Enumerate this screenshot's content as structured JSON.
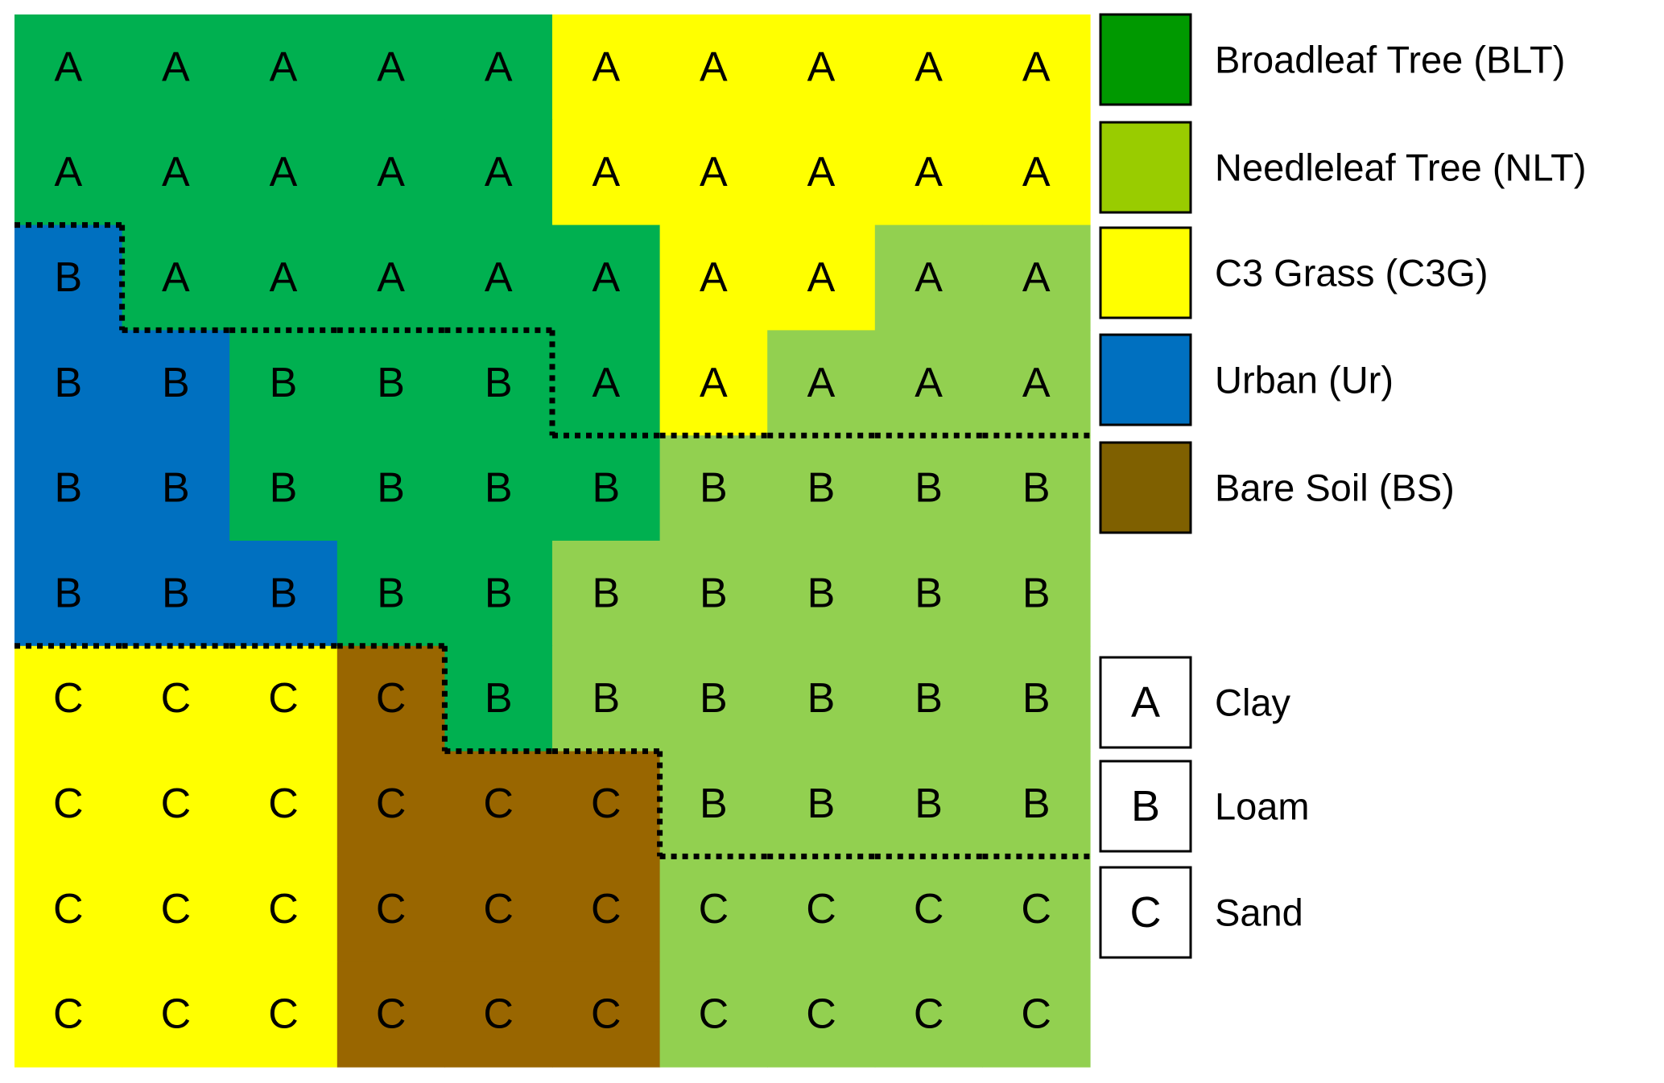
{
  "grid": {
    "rows": [
      {
        "letters": [
          "A",
          "A",
          "A",
          "A",
          "A",
          "A",
          "A",
          "A",
          "A",
          "A"
        ],
        "cover": [
          "BLT",
          "BLT",
          "BLT",
          "BLT",
          "BLT",
          "C3G",
          "C3G",
          "C3G",
          "C3G",
          "C3G"
        ]
      },
      {
        "letters": [
          "A",
          "A",
          "A",
          "A",
          "A",
          "A",
          "A",
          "A",
          "A",
          "A"
        ],
        "cover": [
          "BLT",
          "BLT",
          "BLT",
          "BLT",
          "BLT",
          "C3G",
          "C3G",
          "C3G",
          "C3G",
          "C3G"
        ]
      },
      {
        "letters": [
          "B",
          "A",
          "A",
          "A",
          "A",
          "A",
          "A",
          "A",
          "A",
          "A"
        ],
        "cover": [
          "Ur",
          "BLT",
          "BLT",
          "BLT",
          "BLT",
          "BLT",
          "C3G",
          "C3G",
          "NLT",
          "NLT"
        ]
      },
      {
        "letters": [
          "B",
          "B",
          "B",
          "B",
          "B",
          "A",
          "A",
          "A",
          "A",
          "A"
        ],
        "cover": [
          "Ur",
          "Ur",
          "BLT",
          "BLT",
          "BLT",
          "BLT",
          "C3G",
          "NLT",
          "NLT",
          "NLT"
        ]
      },
      {
        "letters": [
          "B",
          "B",
          "B",
          "B",
          "B",
          "B",
          "B",
          "B",
          "B",
          "B"
        ],
        "cover": [
          "Ur",
          "Ur",
          "BLT",
          "BLT",
          "BLT",
          "BLT",
          "NLT",
          "NLT",
          "NLT",
          "NLT"
        ]
      },
      {
        "letters": [
          "B",
          "B",
          "B",
          "B",
          "B",
          "B",
          "B",
          "B",
          "B",
          "B"
        ],
        "cover": [
          "Ur",
          "Ur",
          "Ur",
          "BLT",
          "BLT",
          "NLT",
          "NLT",
          "NLT",
          "NLT",
          "NLT"
        ]
      },
      {
        "letters": [
          "C",
          "C",
          "C",
          "C",
          "B",
          "B",
          "B",
          "B",
          "B",
          "B"
        ],
        "cover": [
          "C3G",
          "C3G",
          "C3G",
          "BS",
          "BLT",
          "NLT",
          "NLT",
          "NLT",
          "NLT",
          "NLT"
        ]
      },
      {
        "letters": [
          "C",
          "C",
          "C",
          "C",
          "C",
          "C",
          "B",
          "B",
          "B",
          "B"
        ],
        "cover": [
          "C3G",
          "C3G",
          "C3G",
          "BS",
          "BS",
          "BS",
          "NLT",
          "NLT",
          "NLT",
          "NLT"
        ]
      },
      {
        "letters": [
          "C",
          "C",
          "C",
          "C",
          "C",
          "C",
          "C",
          "C",
          "C",
          "C"
        ],
        "cover": [
          "C3G",
          "C3G",
          "C3G",
          "BS",
          "BS",
          "BS",
          "NLT",
          "NLT",
          "NLT",
          "NLT"
        ]
      },
      {
        "letters": [
          "C",
          "C",
          "C",
          "C",
          "C",
          "C",
          "C",
          "C",
          "C",
          "C"
        ],
        "cover": [
          "C3G",
          "C3G",
          "C3G",
          "BS",
          "BS",
          "BS",
          "NLT",
          "NLT",
          "NLT",
          "NLT"
        ]
      }
    ]
  },
  "cover_legend": [
    {
      "code": "BLT",
      "label": "Broadleaf Tree (BLT)",
      "color": "#009900",
      "fill": "#00b050"
    },
    {
      "code": "NLT",
      "label": "Needleleaf Tree (NLT)",
      "color": "#99cc00",
      "fill": "#92d050"
    },
    {
      "code": "C3G",
      "label": "C3 Grass (C3G)",
      "color": "#ffff00",
      "fill": "#ffff00"
    },
    {
      "code": "Ur",
      "label": "Urban (Ur)",
      "color": "#0070c0",
      "fill": "#0070c0"
    },
    {
      "code": "BS",
      "label": "Bare Soil (BS)",
      "color": "#7f6000",
      "fill": "#996600"
    }
  ],
  "soil_legend": [
    {
      "letter": "A",
      "label": "Clay"
    },
    {
      "letter": "B",
      "label": "Loam"
    },
    {
      "letter": "C",
      "label": "Sand"
    }
  ]
}
